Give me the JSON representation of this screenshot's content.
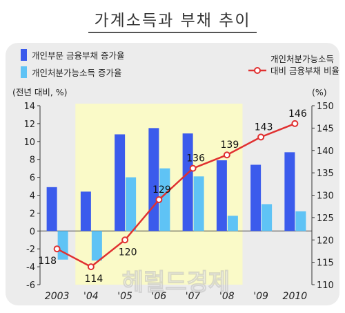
{
  "title": "가계소득과 부채 추이",
  "chart_data": {
    "type": "bar+line",
    "categories": [
      "2003",
      "'04",
      "'05",
      "'06",
      "'07",
      "'08",
      "'09",
      "2010"
    ],
    "series": [
      {
        "name": "개인부문 금융부채 증가율",
        "type": "bar",
        "axis": "left",
        "color": "#3b5bec",
        "values": [
          4.9,
          4.4,
          10.8,
          11.5,
          10.9,
          7.9,
          7.4,
          8.8
        ]
      },
      {
        "name": "개인처분가능소득 증가율",
        "type": "bar",
        "axis": "left",
        "color": "#5fc3f5",
        "values": [
          -3.2,
          -3.3,
          6.0,
          7.0,
          6.1,
          1.7,
          3.0,
          2.2
        ]
      },
      {
        "name": [
          "개인처분가능소득",
          "대비 금융부채 비율"
        ],
        "type": "line",
        "axis": "right",
        "color": "#e03030",
        "values": [
          118,
          114,
          120,
          129,
          136,
          139,
          143,
          146
        ],
        "labels": [
          "118",
          "114",
          "120",
          "129",
          "136",
          "139",
          "143",
          "146"
        ]
      }
    ],
    "y_left": {
      "label": "(전년 대비, %)",
      "min": -6,
      "max": 14,
      "step": 2,
      "ticks": [
        "-6",
        "-4",
        "-2",
        "0",
        "2",
        "4",
        "6",
        "8",
        "10",
        "12",
        "14"
      ]
    },
    "y_right": {
      "label": "(%)",
      "min": 110,
      "max": 150,
      "step": 5,
      "ticks": [
        "110",
        "115",
        "120",
        "125",
        "130",
        "135",
        "140",
        "145",
        "150"
      ]
    },
    "highlight_color": "#fafac8",
    "highlight_range": [
      "'04",
      "'08"
    ],
    "watermark": "헤럴드경제",
    "legend_placement": "top"
  }
}
